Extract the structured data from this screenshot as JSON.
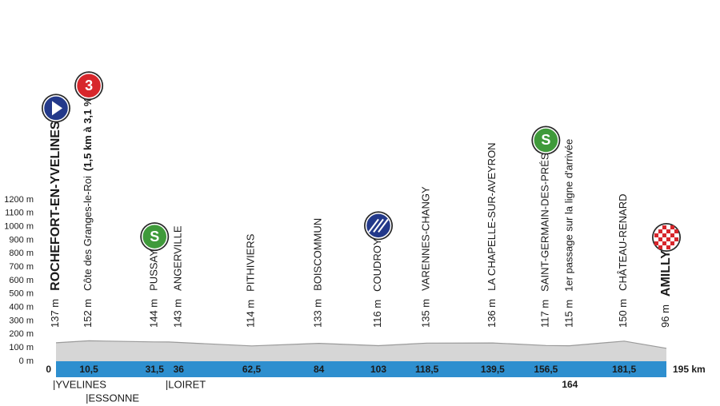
{
  "chart_data": {
    "type": "profile",
    "xlim": [
      0,
      195
    ],
    "ylim": [
      0,
      1200
    ],
    "yticks": [
      {
        "value": 0,
        "label": "0 m"
      },
      {
        "value": 100,
        "label": "100 m"
      },
      {
        "value": 200,
        "label": "200 m"
      },
      {
        "value": 300,
        "label": "300 m"
      },
      {
        "value": 400,
        "label": "400 m"
      },
      {
        "value": 500,
        "label": "500 m"
      },
      {
        "value": 600,
        "label": "600 m"
      },
      {
        "value": 700,
        "label": "700 m"
      },
      {
        "value": 800,
        "label": "800 m"
      },
      {
        "value": 900,
        "label": "900 m"
      },
      {
        "value": 1000,
        "label": "1000 m"
      },
      {
        "value": 1100,
        "label": "1100 m"
      },
      {
        "value": 1200,
        "label": "1200 m"
      }
    ],
    "waypoints": [
      {
        "km": 0,
        "altitude": 137,
        "altitude_label": "137 m",
        "name": "ROCHEFORT-EN-YVELINES",
        "emphasis": true,
        "icon": "start"
      },
      {
        "km": {
          "value": 10.5,
          "label": "10,5"
        },
        "altitude": 152,
        "altitude_label": "152 m",
        "name": "Côte des Granges-le-Roi",
        "note": "(1,5 km à 3,1 %)",
        "icon": "climb",
        "badge": "3"
      },
      {
        "km": {
          "value": 31.5,
          "label": "31,5"
        },
        "altitude": 144,
        "altitude_label": "144 m",
        "name": "PUSSAY",
        "icon": "sprint",
        "badge": "S"
      },
      {
        "km": 36,
        "altitude": 143,
        "altitude_label": "143 m",
        "name": "ANGERVILLE"
      },
      {
        "km": {
          "value": 62.5,
          "label": "62,5"
        },
        "altitude": 114,
        "altitude_label": "114 m",
        "name": "PITHIVIERS"
      },
      {
        "km": 84,
        "altitude": 133,
        "altitude_label": "133 m",
        "name": "BOISCOMMUN"
      },
      {
        "km": 103,
        "altitude": 116,
        "altitude_label": "116 m",
        "name": "COUDROY",
        "icon": "feed"
      },
      {
        "km": {
          "value": 118.5,
          "label": "118,5"
        },
        "altitude": 135,
        "altitude_label": "135 m",
        "name": "VARENNES-CHANGY"
      },
      {
        "km": {
          "value": 139.5,
          "label": "139,5"
        },
        "altitude": 136,
        "altitude_label": "136 m",
        "name": "LA CHAPELLE-SUR-AVEYRON"
      },
      {
        "km": {
          "value": 156.5,
          "label": "156,5"
        },
        "altitude": 117,
        "altitude_label": "117 m",
        "name": "SAINT-GERMAIN-DES-PRÉS",
        "icon": "sprint",
        "badge": "S"
      },
      {
        "km": 164,
        "altitude": 115,
        "altitude_label": "115 m",
        "name": "1er passage sur la ligne d'arrivée",
        "km_label_position": "below"
      },
      {
        "km": {
          "value": 181.5,
          "label": "181,5"
        },
        "altitude": 150,
        "altitude_label": "150 m",
        "name": "CHÂTEAU-RENARD"
      },
      {
        "km": {
          "value": 195,
          "label": "195 km"
        },
        "altitude": 96,
        "altitude_label": "96 m",
        "name": "AMILLY",
        "emphasis": true,
        "icon": "finish"
      }
    ],
    "regions": [
      {
        "name": "|YVELINES",
        "km": 0
      },
      {
        "name": "|ESSONNE",
        "km": 10.5
      },
      {
        "name": "|LOIRET",
        "km": 36
      }
    ]
  }
}
